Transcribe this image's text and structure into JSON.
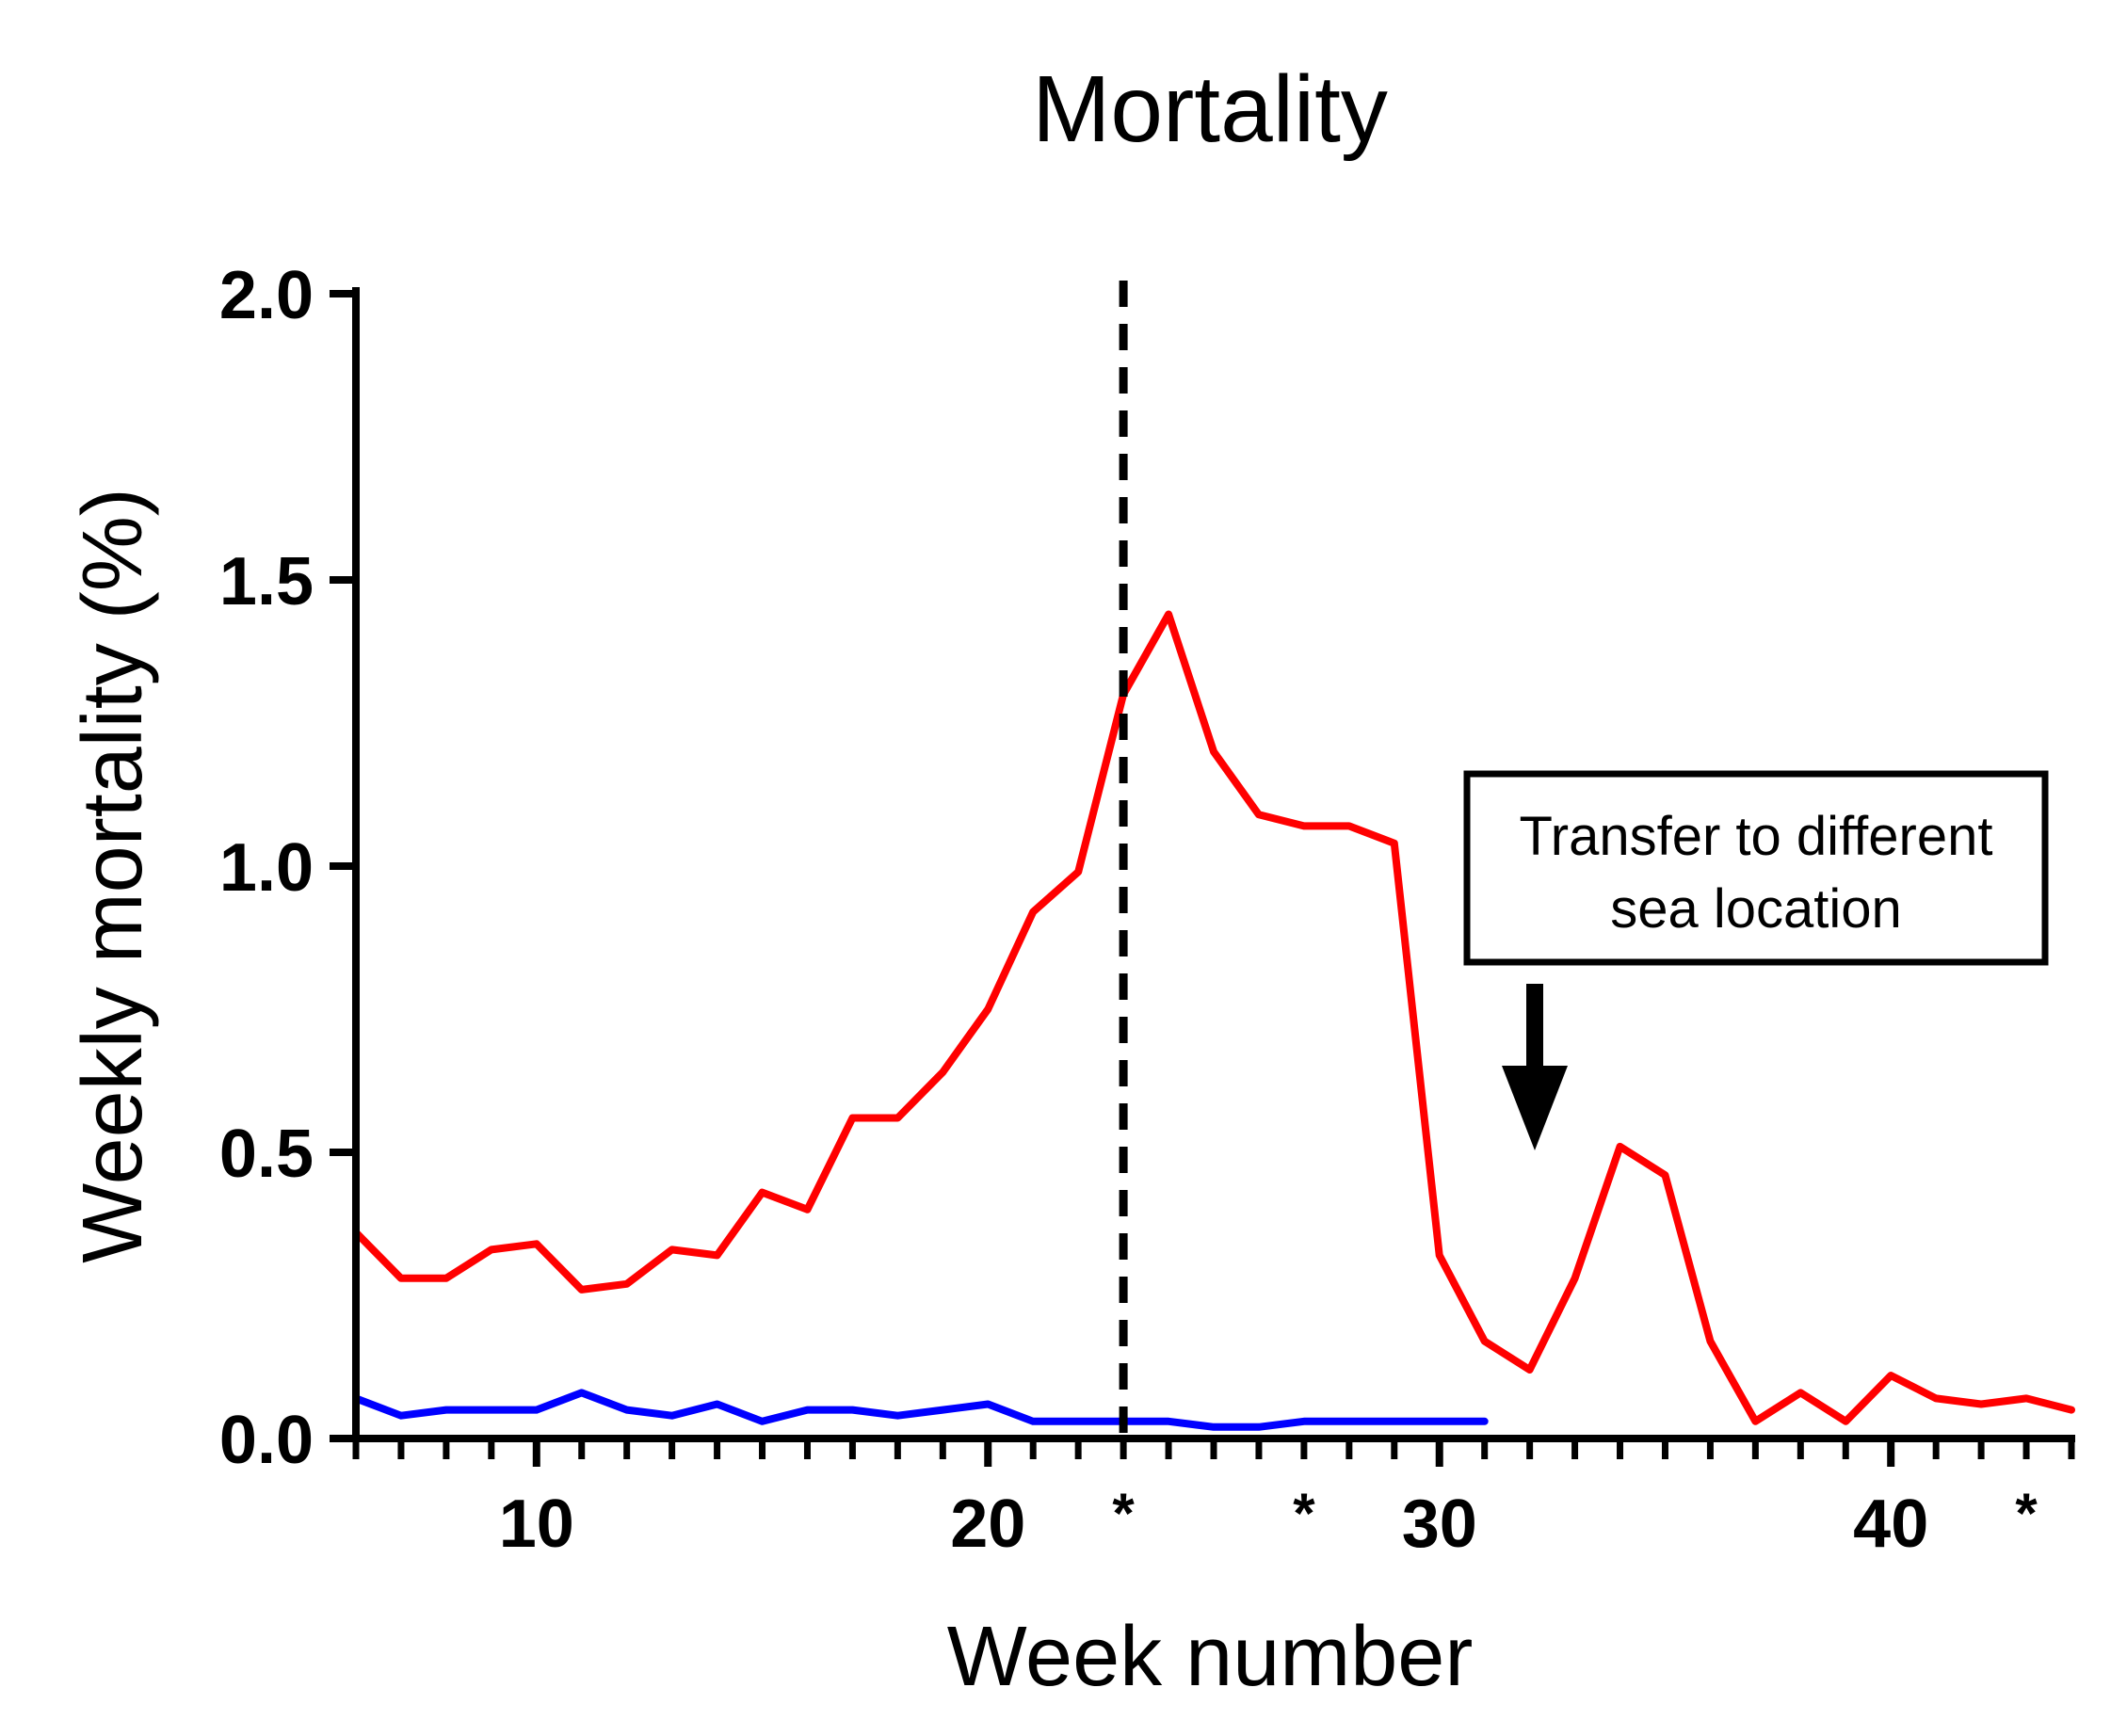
{
  "chart_data": {
    "type": "line",
    "title": "Mortality",
    "xlabel": "Week number",
    "ylabel": "Weekly mortality (%)",
    "xlim": [
      6,
      44
    ],
    "ylim": [
      0,
      2.0
    ],
    "x_major_ticks": [
      10,
      20,
      30,
      40
    ],
    "x_major_tick_labels": [
      "10",
      "20",
      "30",
      "40"
    ],
    "y_ticks": [
      0,
      0.5,
      1.0,
      1.5,
      2.0
    ],
    "y_tick_labels": [
      "0.0",
      "0.5",
      "1.0",
      "1.5",
      "2.0"
    ],
    "grid": false,
    "series": [
      {
        "name": "red",
        "color": "#ff0000",
        "x": [
          6,
          7,
          8,
          9,
          10,
          11,
          12,
          13,
          14,
          15,
          16,
          17,
          18,
          19,
          20,
          21,
          22,
          23,
          24,
          25,
          26,
          27,
          28,
          29,
          30,
          31,
          32,
          33,
          34,
          35,
          36,
          37,
          38,
          39,
          40,
          41,
          42,
          43,
          44
        ],
        "y": [
          0.36,
          0.28,
          0.28,
          0.33,
          0.34,
          0.26,
          0.27,
          0.33,
          0.32,
          0.43,
          0.4,
          0.56,
          0.56,
          0.64,
          0.75,
          0.92,
          0.99,
          1.3,
          1.44,
          1.2,
          1.09,
          1.07,
          1.07,
          1.04,
          0.32,
          0.17,
          0.12,
          0.28,
          0.51,
          0.46,
          0.17,
          0.03,
          0.08,
          0.03,
          0.11,
          0.07,
          0.06,
          0.07,
          0.05
        ]
      },
      {
        "name": "blue",
        "color": "#0000ff",
        "x": [
          6,
          7,
          8,
          9,
          10,
          11,
          12,
          13,
          14,
          15,
          16,
          17,
          18,
          19,
          20,
          21,
          22,
          23,
          24,
          25,
          26,
          27,
          28,
          29,
          30,
          31
        ],
        "y": [
          0.07,
          0.04,
          0.05,
          0.05,
          0.05,
          0.08,
          0.05,
          0.04,
          0.06,
          0.03,
          0.05,
          0.05,
          0.04,
          0.05,
          0.06,
          0.03,
          0.03,
          0.03,
          0.03,
          0.02,
          0.02,
          0.03,
          0.03,
          0.03,
          0.03,
          0.03
        ]
      }
    ],
    "vertical_line": {
      "x": 23,
      "style": "dashed",
      "color": "#000000"
    },
    "markers": [
      {
        "x": 23,
        "label": "*"
      },
      {
        "x": 27,
        "label": "*"
      },
      {
        "x": 43,
        "label": "*"
      }
    ],
    "annotation": {
      "lines": [
        "Transfer to different",
        "sea location"
      ],
      "arrow_points_to_week": 32
    }
  }
}
